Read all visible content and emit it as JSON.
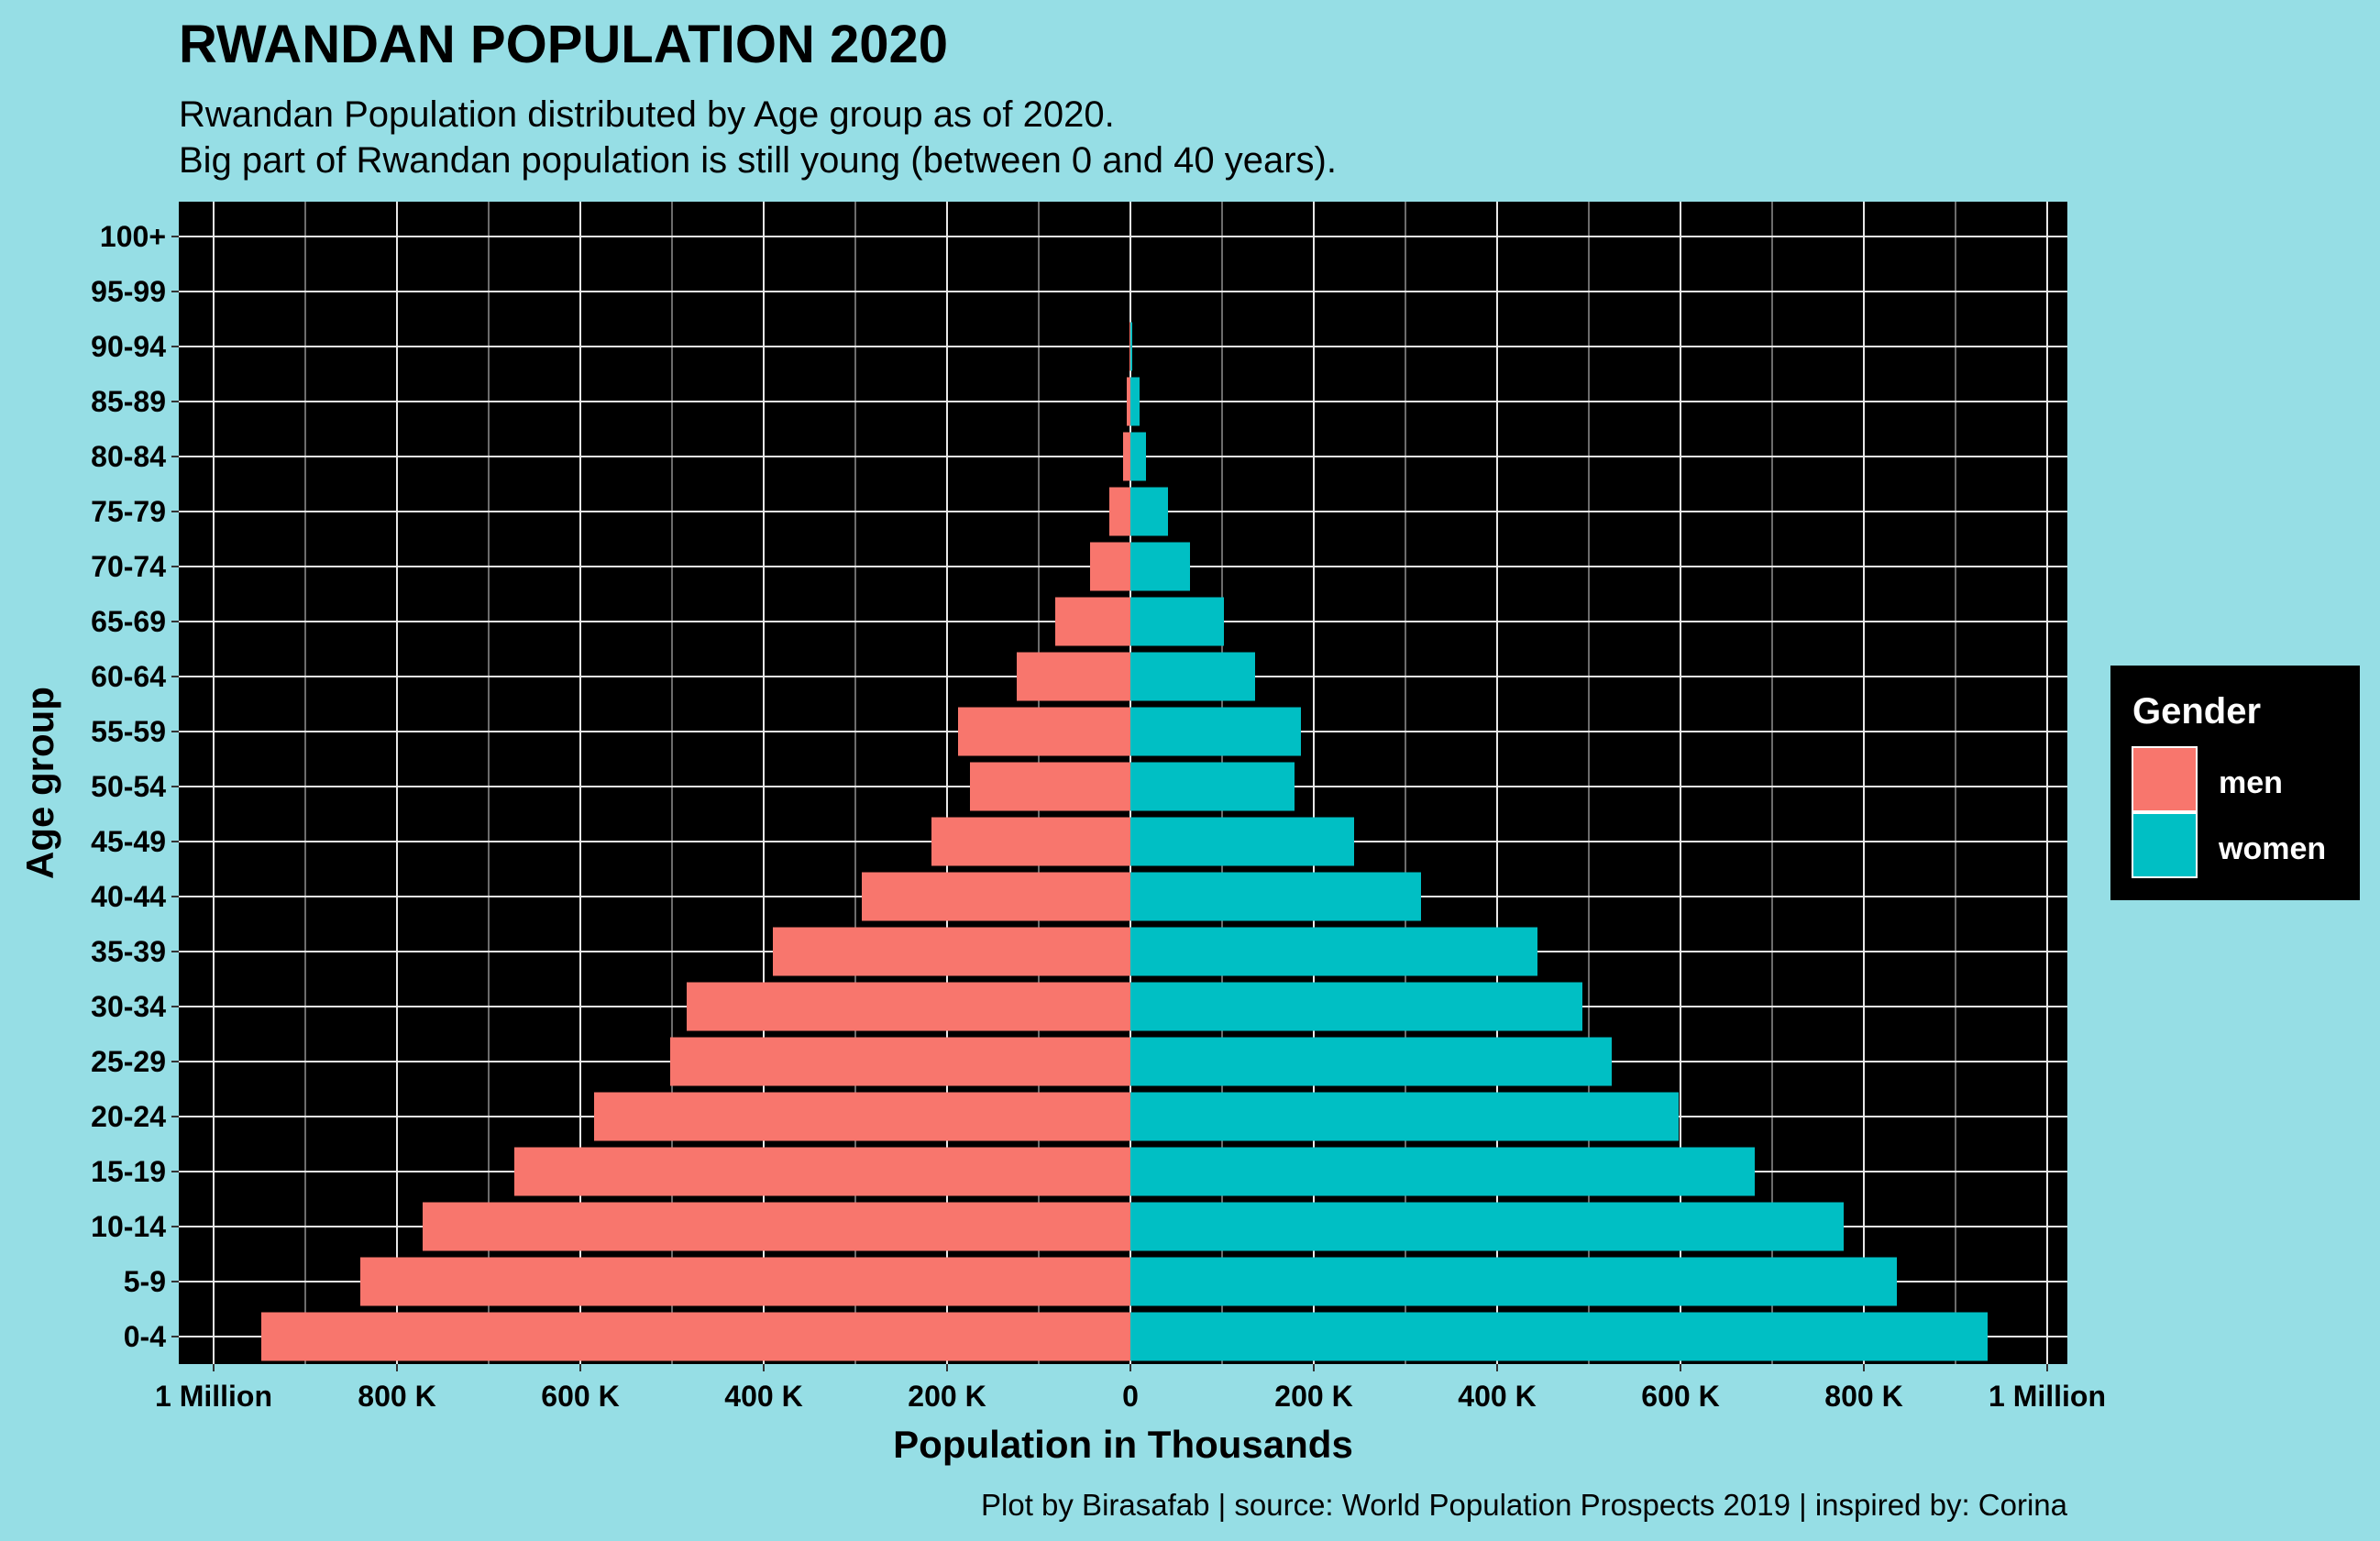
{
  "chart_data": {
    "type": "bar",
    "orientation": "horizontal",
    "title": "RWANDAN POPULATION 2020",
    "subtitle_lines": [
      "Rwandan Population distributed by Age group as of 2020.",
      "Big part of Rwandan population is still young (between 0 and 40 years)."
    ],
    "xlabel": "Population in Thousands",
    "ylabel": "Age group",
    "caption": "Plot by Birasafab | source: World Population Prospects 2019 | inspired by: Corina",
    "categories": [
      "0-4",
      "5-9",
      "10-14",
      "15-19",
      "20-24",
      "25-29",
      "30-34",
      "35-39",
      "40-44",
      "45-49",
      "50-54",
      "55-59",
      "60-64",
      "65-69",
      "70-74",
      "75-79",
      "80-84",
      "85-89",
      "90-94",
      "95-99",
      "100+"
    ],
    "series": [
      {
        "name": "men",
        "color": "#f8766d",
        "values": [
          948,
          840,
          772,
          672,
          585,
          502,
          484,
          390,
          293,
          217,
          175,
          188,
          124,
          82,
          44,
          23,
          8,
          4,
          1,
          0,
          0
        ]
      },
      {
        "name": "women",
        "color": "#00bfc4",
        "values": [
          935,
          836,
          778,
          681,
          598,
          525,
          493,
          444,
          317,
          244,
          179,
          186,
          136,
          102,
          65,
          41,
          17,
          10,
          2,
          0,
          0
        ]
      }
    ],
    "xlim": [
      -1000,
      1000
    ],
    "xticks": [
      {
        "value": -1000,
        "label": "1 Million"
      },
      {
        "value": -800,
        "label": "800 K"
      },
      {
        "value": -600,
        "label": "600 K"
      },
      {
        "value": -400,
        "label": "400 K"
      },
      {
        "value": -200,
        "label": "200 K"
      },
      {
        "value": 0,
        "label": "0"
      },
      {
        "value": 200,
        "label": "200 K"
      },
      {
        "value": 400,
        "label": "400 K"
      },
      {
        "value": 600,
        "label": "600 K"
      },
      {
        "value": 800,
        "label": "800 K"
      },
      {
        "value": 1000,
        "label": "1 Million"
      }
    ],
    "grid": true,
    "panel_background": "#000000",
    "page_background": "#96dee5",
    "legend": {
      "title": "Gender",
      "placement": "right",
      "background": "#000000"
    }
  }
}
